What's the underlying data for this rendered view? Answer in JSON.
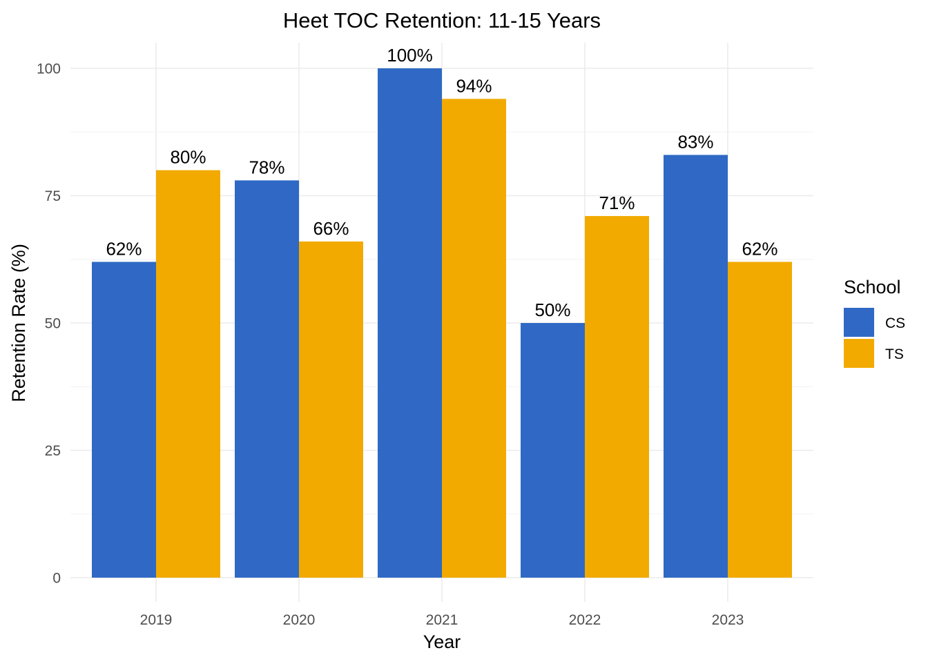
{
  "chart_data": {
    "type": "bar",
    "title": "Heet TOC Retention: 11-15 Years",
    "xlabel": "Year",
    "ylabel": "Retention Rate (%)",
    "categories": [
      "2019",
      "2020",
      "2021",
      "2022",
      "2023"
    ],
    "series": [
      {
        "name": "CS",
        "color": "#2F69C5",
        "values": [
          62,
          78,
          100,
          50,
          83
        ],
        "labels": [
          "62%",
          "78%",
          "100%",
          "50%",
          "83%"
        ]
      },
      {
        "name": "TS",
        "color": "#F2AA00",
        "values": [
          80,
          66,
          94,
          71,
          62
        ],
        "labels": [
          "80%",
          "66%",
          "94%",
          "71%",
          "62%"
        ]
      }
    ],
    "ylim": [
      0,
      100
    ],
    "yticks": [
      0,
      25,
      50,
      75,
      100
    ],
    "ytick_labels": [
      "0",
      "25",
      "50",
      "75",
      "100"
    ],
    "grid": true,
    "legend": {
      "title": "School",
      "position": "right"
    }
  }
}
